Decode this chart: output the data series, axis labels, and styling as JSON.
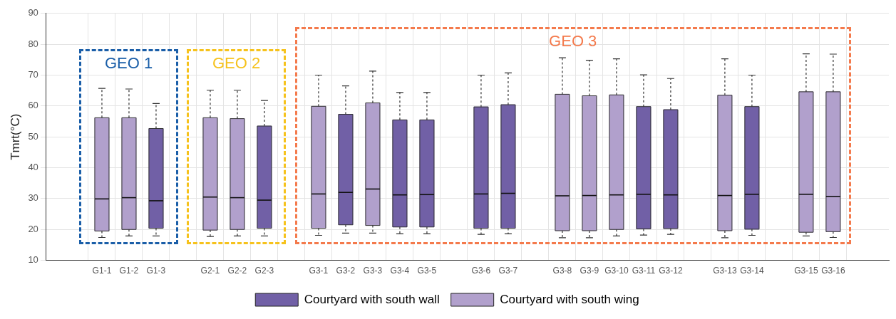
{
  "chart_data": {
    "type": "box",
    "ylabel": "Tmrt(°C)",
    "categories": [
      "G1-1",
      "G1-2",
      "G1-3",
      null,
      "G2-1",
      "G2-2",
      "G2-3",
      null,
      "G3-1",
      "G3-2",
      "G3-3",
      "G3-4",
      "G3-5",
      null,
      "G3-6",
      "G3-7",
      null,
      "G3-8",
      "G3-9",
      "G3-10",
      "G3-11",
      "G3-12",
      null,
      "G3-13",
      "G3-14",
      null,
      "G3-15",
      "G3-16"
    ],
    "series": [
      {
        "name": "Courtyard with south wall",
        "color": "#7160a6",
        "boxes": [
          null,
          null,
          {
            "low": 17.9,
            "q1": 20.4,
            "median": 29.3,
            "q3": 52.7,
            "high": 60.8
          },
          null,
          null,
          null,
          {
            "low": 17.9,
            "q1": 20.4,
            "median": 29.5,
            "q3": 53.5,
            "high": 61.8
          },
          null,
          null,
          {
            "low": 18.8,
            "q1": 21.5,
            "median": 32.0,
            "q3": 57.3,
            "high": 66.5
          },
          null,
          {
            "low": 18.6,
            "q1": 20.8,
            "median": 31.2,
            "q3": 55.5,
            "high": 64.4
          },
          {
            "low": 18.6,
            "q1": 20.8,
            "median": 31.3,
            "q3": 55.5,
            "high": 64.4
          },
          null,
          {
            "low": 18.4,
            "q1": 20.4,
            "median": 31.5,
            "q3": 59.7,
            "high": 70.0
          },
          {
            "low": 18.6,
            "q1": 20.4,
            "median": 31.7,
            "q3": 60.4,
            "high": 70.7
          },
          null,
          null,
          null,
          null,
          {
            "low": 18.2,
            "q1": 20.2,
            "median": 31.4,
            "q3": 59.8,
            "high": 70.1
          },
          {
            "low": 18.4,
            "q1": 20.3,
            "median": 31.2,
            "q3": 58.8,
            "high": 68.9
          },
          null,
          null,
          {
            "low": 18.1,
            "q1": 20.1,
            "median": 31.4,
            "q3": 59.8,
            "high": 70.0
          },
          null,
          null,
          null
        ]
      },
      {
        "name": "Courtyard with south wing",
        "color": "#b1a0cc",
        "boxes": [
          {
            "low": 17.4,
            "q1": 19.5,
            "median": 29.9,
            "q3": 56.2,
            "high": 65.7
          },
          {
            "low": 17.9,
            "q1": 20.0,
            "median": 30.3,
            "q3": 56.2,
            "high": 65.5
          },
          null,
          null,
          {
            "low": 17.7,
            "q1": 19.8,
            "median": 30.5,
            "q3": 56.2,
            "high": 65.1
          },
          {
            "low": 17.9,
            "q1": 20.0,
            "median": 30.3,
            "q3": 55.9,
            "high": 65.1
          },
          null,
          null,
          {
            "low": 18.1,
            "q1": 20.4,
            "median": 31.5,
            "q3": 59.9,
            "high": 70.0
          },
          null,
          {
            "low": 18.8,
            "q1": 21.3,
            "median": 33.1,
            "q3": 61.0,
            "high": 71.3
          },
          null,
          null,
          null,
          null,
          null,
          null,
          {
            "low": 17.3,
            "q1": 19.6,
            "median": 30.9,
            "q3": 63.8,
            "high": 75.6
          },
          {
            "low": 17.3,
            "q1": 19.6,
            "median": 31.0,
            "q3": 63.3,
            "high": 74.8
          },
          {
            "low": 17.9,
            "q1": 20.0,
            "median": 31.2,
            "q3": 63.6,
            "high": 75.3
          },
          null,
          null,
          null,
          {
            "low": 17.3,
            "q1": 19.6,
            "median": 31.0,
            "q3": 63.5,
            "high": 75.3
          },
          null,
          null,
          {
            "low": 17.9,
            "q1": 19.1,
            "median": 31.4,
            "q3": 64.6,
            "high": 76.9
          },
          {
            "low": 17.4,
            "q1": 19.3,
            "median": 30.7,
            "q3": 64.6,
            "high": 76.8
          }
        ]
      }
    ],
    "ylim": [
      10,
      90
    ],
    "yticks": [
      10,
      20,
      30,
      40,
      50,
      60,
      70,
      80,
      90
    ],
    "grid": true,
    "legend": "bottom",
    "annotations": [
      "GEO 1",
      "GEO 2",
      "GEO 3"
    ]
  }
}
